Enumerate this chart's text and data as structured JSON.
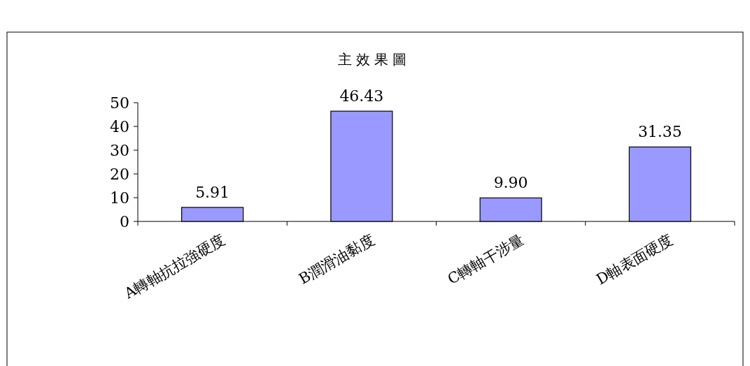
{
  "chart_data": {
    "type": "bar",
    "title": "主效果圖",
    "categories": [
      "A轉軸抗拉強硬度",
      "B潤滑油黏度",
      "C轉軸干涉量",
      "D軸表面硬度"
    ],
    "values": [
      5.91,
      46.43,
      9.9,
      31.35
    ],
    "value_labels": [
      "5.91",
      "46.43",
      "9.90",
      "31.35"
    ],
    "color": "#9999ff",
    "ylim": [
      0,
      50
    ],
    "yticks": [
      0,
      10,
      20,
      30,
      40,
      50
    ]
  }
}
